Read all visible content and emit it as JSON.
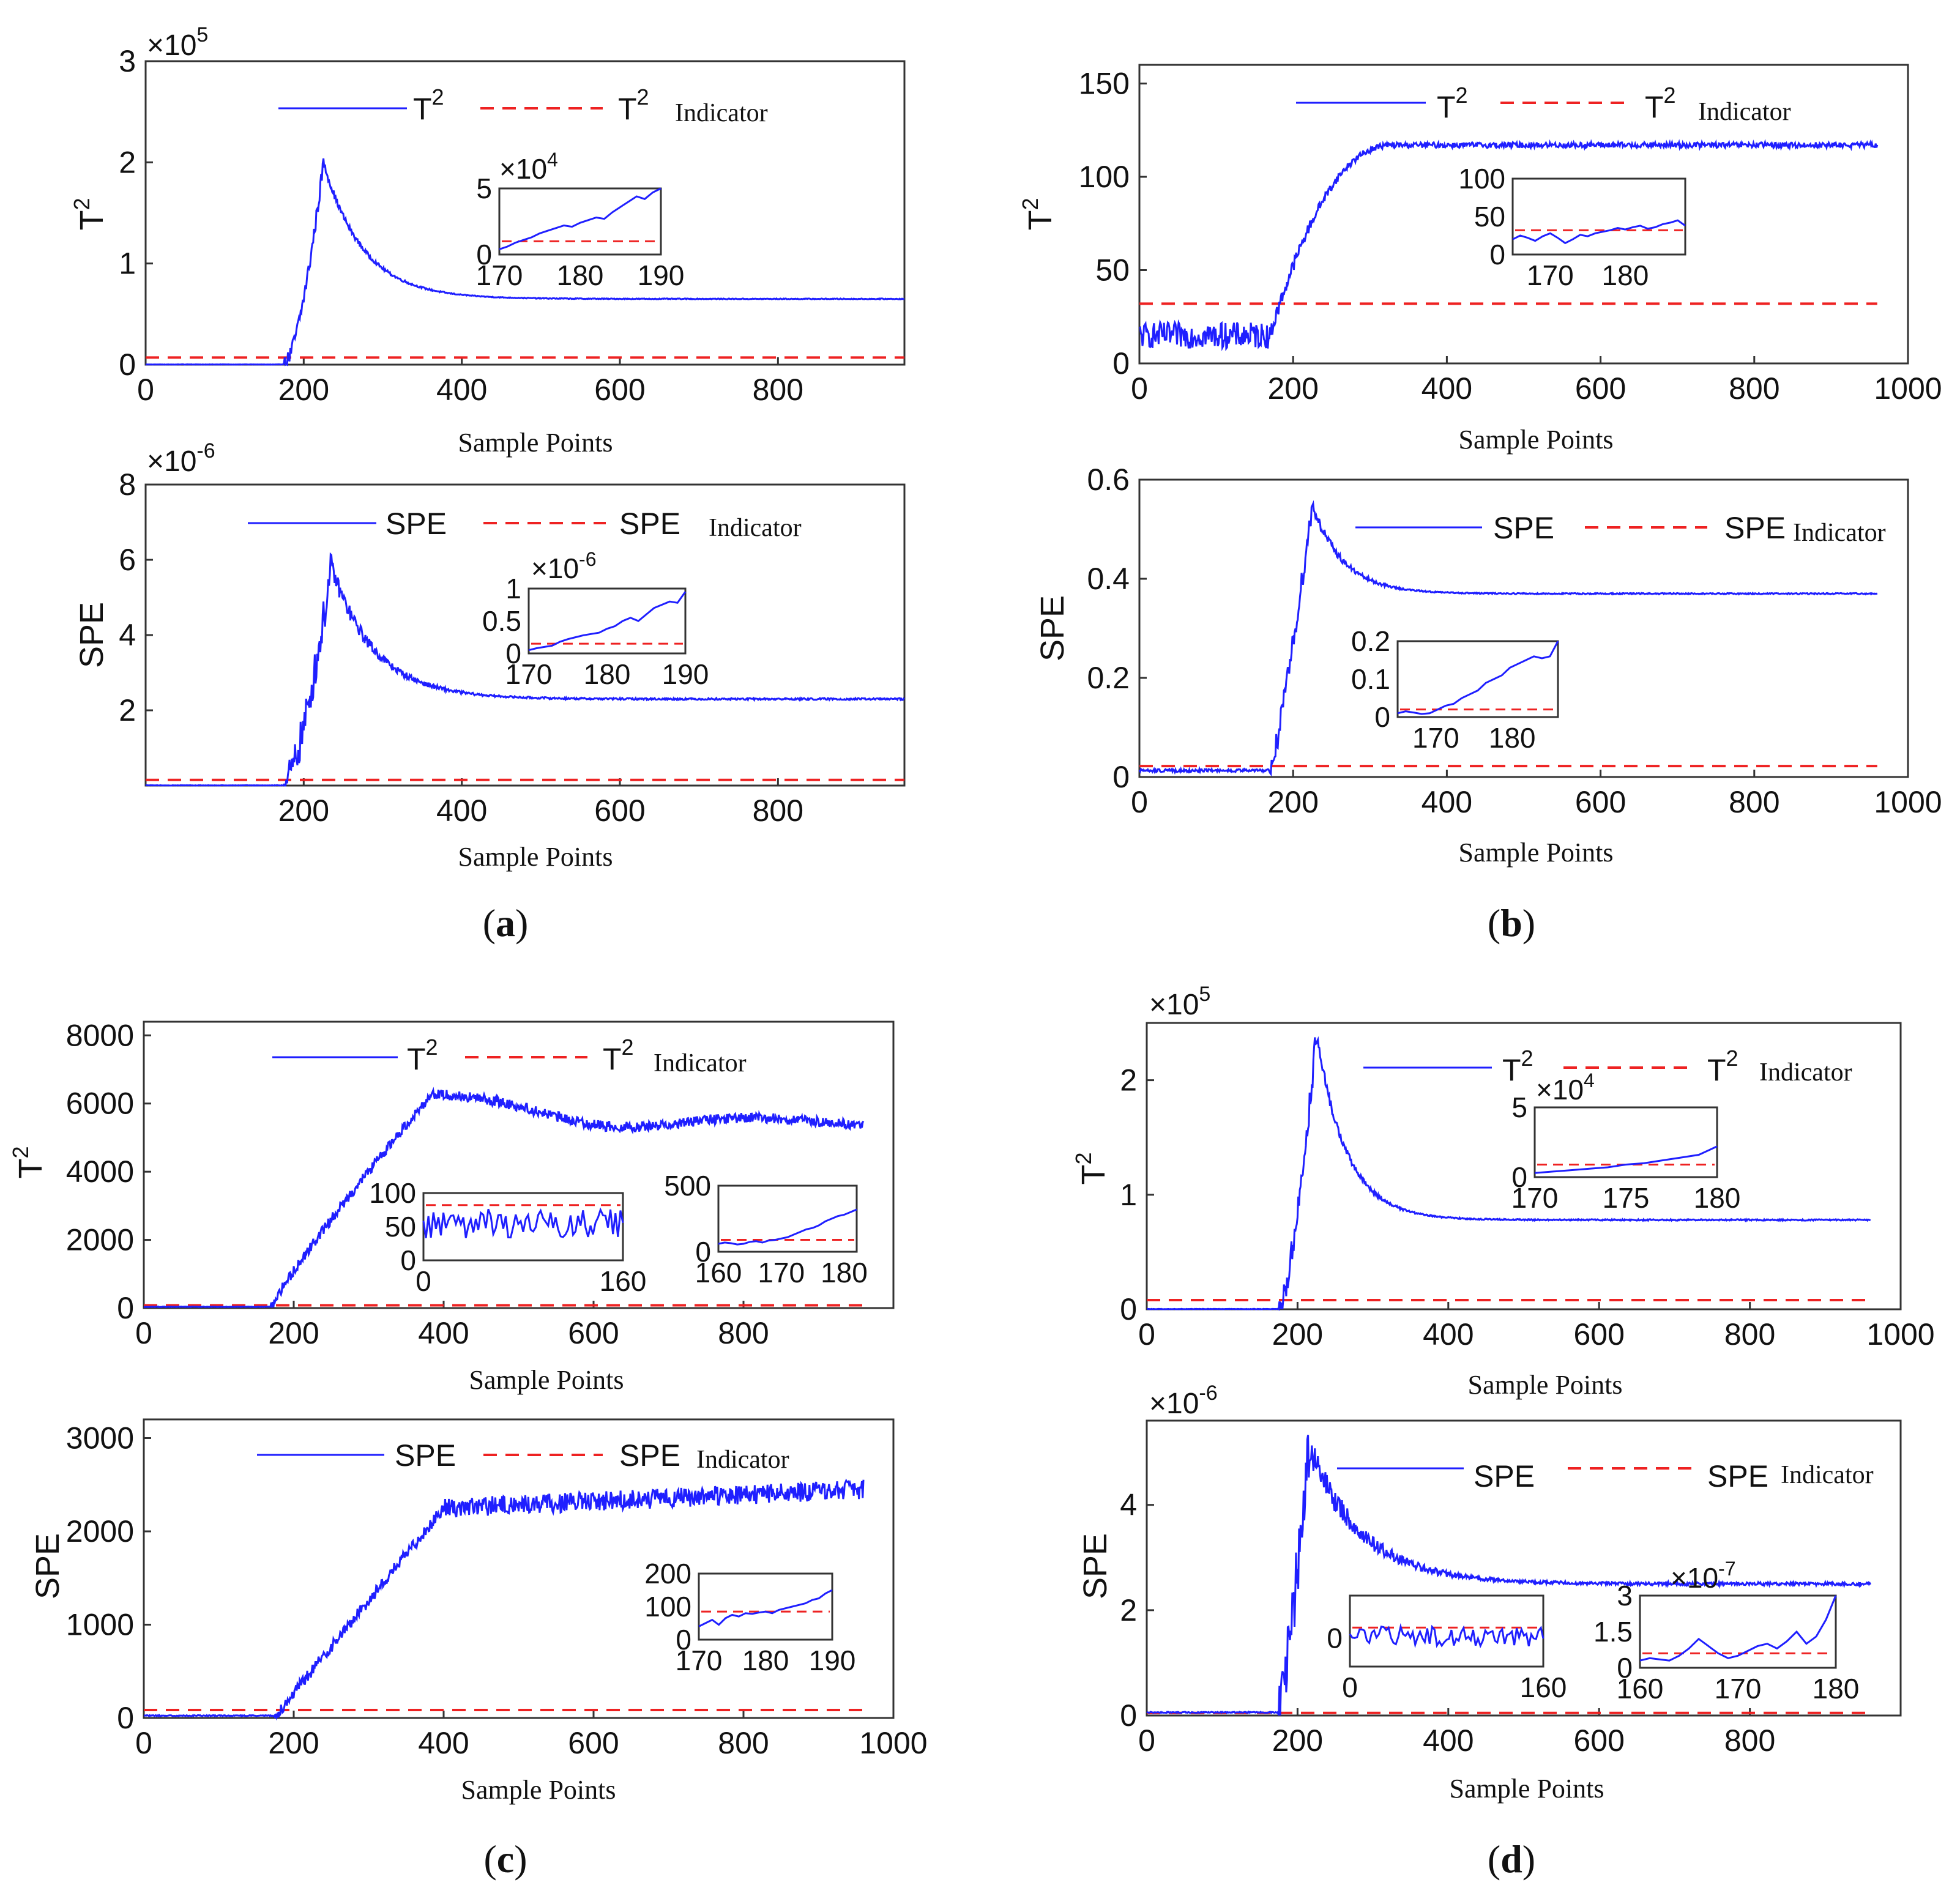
{
  "figure": {
    "xlabel": "Sample Points",
    "legend_t2_line": "T",
    "legend_t2_indicator": "T",
    "legend_spe_line": "SPE",
    "legend_spe_indicator": "SPE",
    "indicator_word": "Indicator",
    "sup2": "2",
    "times": "×",
    "ten": "10"
  },
  "colors": {
    "series": "#1f1fff",
    "indicator": "#ee2222",
    "axis": "#333333"
  },
  "chart_data": [
    {
      "id": "a-t2",
      "type": "line",
      "panel_caption": "a",
      "ylabel": "T",
      "ylabel_sup": "2",
      "exponent": "5",
      "xlim": [
        0,
        960
      ],
      "ylim": [
        0,
        3
      ],
      "xticks": [
        0,
        200,
        400,
        600,
        800
      ],
      "yticks": [
        0,
        1,
        2,
        3
      ],
      "indicator": 0.07,
      "series": {
        "shape": "peak",
        "start": 175,
        "peak_x": 225,
        "peak": 2.0,
        "final": 0.65,
        "settle": 50,
        "noise": 0.04,
        "rise_pow": 1.6,
        "base": 0.0,
        "base_noise": 0.003
      },
      "insets": [
        {
          "xlim": [
            170,
            190
          ],
          "ylim": [
            0,
            5
          ],
          "xticks": [
            170,
            180,
            190
          ],
          "yticks": [
            0,
            5
          ],
          "exponent": "4",
          "indicator": 1.0,
          "values": [
            0.4,
            0.6,
            0.9,
            1.1,
            1.3,
            1.6,
            1.8,
            2.0,
            2.2,
            2.1,
            2.4,
            2.6,
            2.8,
            2.7,
            3.2,
            3.6,
            4.0,
            4.4,
            4.2,
            4.7,
            5.0
          ]
        }
      ]
    },
    {
      "id": "a-spe",
      "type": "line",
      "ylabel": "SPE",
      "exponent": "-6",
      "xlim": [
        0,
        960
      ],
      "ylim": [
        0,
        8
      ],
      "xticks": [
        200,
        400,
        600,
        800
      ],
      "yticks": [
        2,
        4,
        6,
        8
      ],
      "indicator": 0.15,
      "series": {
        "shape": "peak",
        "start": 175,
        "peak_x": 235,
        "peak": 5.8,
        "final": 2.3,
        "settle": 55,
        "noise": 0.25,
        "rise_pow": 1.5,
        "base": 0.0,
        "base_noise": 0.01
      },
      "insets": [
        {
          "xlim": [
            170,
            190
          ],
          "ylim": [
            0,
            1
          ],
          "xticks": [
            170,
            180,
            190
          ],
          "yticks": [
            0,
            0.5,
            1
          ],
          "exponent": "-6",
          "indicator": 0.15,
          "values": [
            0.05,
            0.08,
            0.1,
            0.12,
            0.18,
            0.22,
            0.25,
            0.28,
            0.3,
            0.32,
            0.38,
            0.42,
            0.5,
            0.55,
            0.5,
            0.6,
            0.7,
            0.75,
            0.8,
            0.78,
            0.95
          ]
        }
      ]
    },
    {
      "id": "b-t2",
      "type": "line",
      "panel_caption": "b",
      "ylabel": "T",
      "ylabel_sup": "2",
      "xlim": [
        0,
        1000
      ],
      "ylim": [
        0,
        160
      ],
      "xticks": [
        0,
        200,
        400,
        600,
        800,
        1000
      ],
      "yticks": [
        0,
        50,
        100,
        150
      ],
      "indicator": 32,
      "series": {
        "shape": "sigmoid",
        "start": 170,
        "end": 330,
        "base": 15,
        "base_noise": 7,
        "final": 117,
        "noise": 3
      },
      "insets": [
        {
          "xlim": [
            165,
            188
          ],
          "ylim": [
            0,
            100
          ],
          "xticks": [
            170,
            180
          ],
          "yticks": [
            0,
            50,
            100
          ],
          "indicator": 32,
          "values": [
            20,
            25,
            22,
            18,
            24,
            28,
            22,
            15,
            20,
            26,
            24,
            28,
            30,
            32,
            35,
            33,
            36,
            38,
            34,
            36,
            40,
            42,
            45,
            38
          ]
        }
      ]
    },
    {
      "id": "b-spe",
      "type": "line",
      "ylabel": "SPE",
      "xlim": [
        0,
        1000
      ],
      "ylim": [
        0,
        0.6
      ],
      "xticks": [
        0,
        200,
        400,
        600,
        800,
        1000
      ],
      "yticks": [
        0,
        0.2,
        0.4,
        0.6
      ],
      "indicator": 0.022,
      "series": {
        "shape": "peak",
        "start": 170,
        "peak_x": 225,
        "peak": 0.55,
        "final": 0.37,
        "settle": 40,
        "noise": 0.012,
        "rise_pow": 1.2,
        "base": 0.01,
        "base_noise": 0.006
      },
      "insets": [
        {
          "xlim": [
            165,
            186
          ],
          "ylim": [
            0,
            0.2
          ],
          "xticks": [
            170,
            180
          ],
          "yticks": [
            0,
            0.1,
            0.2
          ],
          "indicator": 0.02,
          "values": [
            0.01,
            0.015,
            0.012,
            0.008,
            0.01,
            0.02,
            0.03,
            0.035,
            0.05,
            0.06,
            0.07,
            0.09,
            0.1,
            0.11,
            0.13,
            0.14,
            0.15,
            0.16,
            0.155,
            0.16,
            0.2
          ]
        }
      ]
    },
    {
      "id": "c-t2",
      "type": "line",
      "panel_caption": "c",
      "ylabel": "T",
      "ylabel_sup": "2",
      "xlim": [
        0,
        1000
      ],
      "ylim": [
        0,
        8400
      ],
      "xticks": [
        0,
        200,
        400,
        600,
        800
      ],
      "yticks": [
        0,
        2000,
        4000,
        6000,
        8000
      ],
      "indicator": 80,
      "series": {
        "shape": "ramp_osc",
        "start": 170,
        "peak_x": 385,
        "peak": 6300,
        "final": 5450,
        "noise": 150,
        "osc": 350,
        "base": 30,
        "base_noise": 15
      },
      "insets": [
        {
          "xlim": [
            0,
            160
          ],
          "ylim": [
            0,
            100
          ],
          "xticks": [
            0,
            160
          ],
          "yticks": [
            0,
            50,
            100
          ],
          "indicator": 82,
          "noisy": true,
          "mean": 55,
          "amp": 22
        },
        {
          "xlim": [
            160,
            182
          ],
          "ylim": [
            0,
            500
          ],
          "xticks": [
            160,
            170,
            180
          ],
          "yticks": [
            0,
            500
          ],
          "indicator": 90,
          "values": [
            60,
            70,
            65,
            55,
            60,
            75,
            80,
            70,
            85,
            90,
            100,
            110,
            130,
            150,
            170,
            180,
            200,
            230,
            250,
            270,
            280,
            300,
            320
          ]
        }
      ]
    },
    {
      "id": "c-spe",
      "type": "line",
      "ylabel": "SPE",
      "xlim": [
        0,
        1000
      ],
      "ylim": [
        0,
        3200
      ],
      "xticks": [
        0,
        200,
        400,
        600,
        800,
        1000
      ],
      "yticks": [
        0,
        1000,
        2000,
        3000
      ],
      "indicator": 85,
      "series": {
        "shape": "ramp_plateau",
        "start": 175,
        "plateau_x": 400,
        "plateau": 2250,
        "final": 2450,
        "noise": 80,
        "base": 20,
        "base_noise": 10
      },
      "insets": [
        {
          "xlim": [
            170,
            190
          ],
          "ylim": [
            0,
            200
          ],
          "xticks": [
            170,
            180,
            190
          ],
          "yticks": [
            0,
            100,
            200
          ],
          "indicator": 85,
          "values": [
            40,
            50,
            60,
            45,
            65,
            75,
            70,
            80,
            78,
            82,
            85,
            80,
            90,
            95,
            100,
            105,
            110,
            120,
            125,
            140,
            150
          ]
        }
      ]
    },
    {
      "id": "d-t2",
      "type": "line",
      "panel_caption": "d",
      "ylabel": "T",
      "ylabel_sup": "2",
      "exponent": "5",
      "xlim": [
        0,
        1000
      ],
      "ylim": [
        0,
        2.5
      ],
      "xticks": [
        0,
        200,
        400,
        600,
        800,
        1000
      ],
      "yticks": [
        0,
        1,
        2
      ],
      "indicator": 0.08,
      "series": {
        "shape": "peak",
        "start": 175,
        "peak_x": 225,
        "peak": 2.4,
        "final": 0.78,
        "settle": 40,
        "noise": 0.06,
        "rise_pow": 1.5,
        "base": 0.0,
        "base_noise": 0.004
      },
      "insets": [
        {
          "xlim": [
            170,
            180
          ],
          "ylim": [
            0,
            5
          ],
          "xticks": [
            170,
            175,
            180
          ],
          "yticks": [
            0,
            5
          ],
          "exponent": "4",
          "indicator": 0.9,
          "values": [
            0.3,
            0.4,
            0.5,
            0.6,
            0.7,
            0.9,
            1.0,
            1.2,
            1.4,
            1.6,
            2.2
          ]
        }
      ]
    },
    {
      "id": "d-spe",
      "type": "line",
      "ylabel": "SPE",
      "exponent": "-6",
      "xlim": [
        0,
        1000
      ],
      "ylim": [
        0,
        5.6
      ],
      "xticks": [
        0,
        200,
        400,
        600,
        800
      ],
      "yticks": [
        0,
        2,
        4
      ],
      "indicator": 0.05,
      "series": {
        "shape": "peak",
        "start": 175,
        "peak_x": 215,
        "peak": 5.1,
        "final": 2.5,
        "settle": 70,
        "noise": 0.3,
        "rise_pow": 1.3,
        "base": 0.05,
        "base_noise": 0.02
      },
      "insets": [
        {
          "xlim": [
            0,
            160
          ],
          "ylim": [
            -0.8,
            1.2
          ],
          "xticks": [
            0,
            160
          ],
          "yticks": [
            0
          ],
          "indicator": 0.3,
          "noisy": true,
          "mean": 0.05,
          "amp": 0.28
        },
        {
          "xlim": [
            160,
            180
          ],
          "ylim": [
            0,
            3
          ],
          "xticks": [
            160,
            170,
            180
          ],
          "yticks": [
            0,
            1.5,
            3
          ],
          "exponent": "-7",
          "indicator": 0.6,
          "values": [
            0.3,
            0.4,
            0.35,
            0.3,
            0.5,
            0.8,
            1.2,
            0.9,
            0.6,
            0.4,
            0.5,
            0.7,
            0.9,
            1.0,
            0.8,
            1.1,
            1.5,
            1.0,
            1.3,
            2.0,
            3.0
          ]
        }
      ]
    }
  ],
  "captions": [
    {
      "text": "a"
    },
    {
      "text": "b"
    },
    {
      "text": "c"
    },
    {
      "text": "d"
    }
  ]
}
